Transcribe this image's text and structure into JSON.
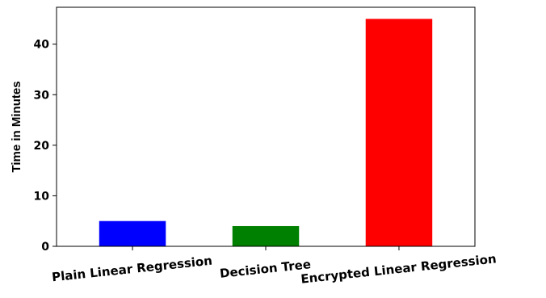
{
  "chart_data": {
    "type": "bar",
    "ylabel": "Time in Minutes",
    "xlabel": "",
    "title": "",
    "categories": [
      "Plain Linear Regression",
      "Decision Tree",
      "Encrypted Linear Regression"
    ],
    "values": [
      5,
      4,
      45
    ],
    "colors": [
      "#0000ff",
      "#008000",
      "#ff0000"
    ],
    "ylim": [
      0,
      47.3
    ],
    "yticks": [
      0,
      10,
      20,
      30,
      40
    ],
    "grid": false,
    "legend": "none"
  }
}
